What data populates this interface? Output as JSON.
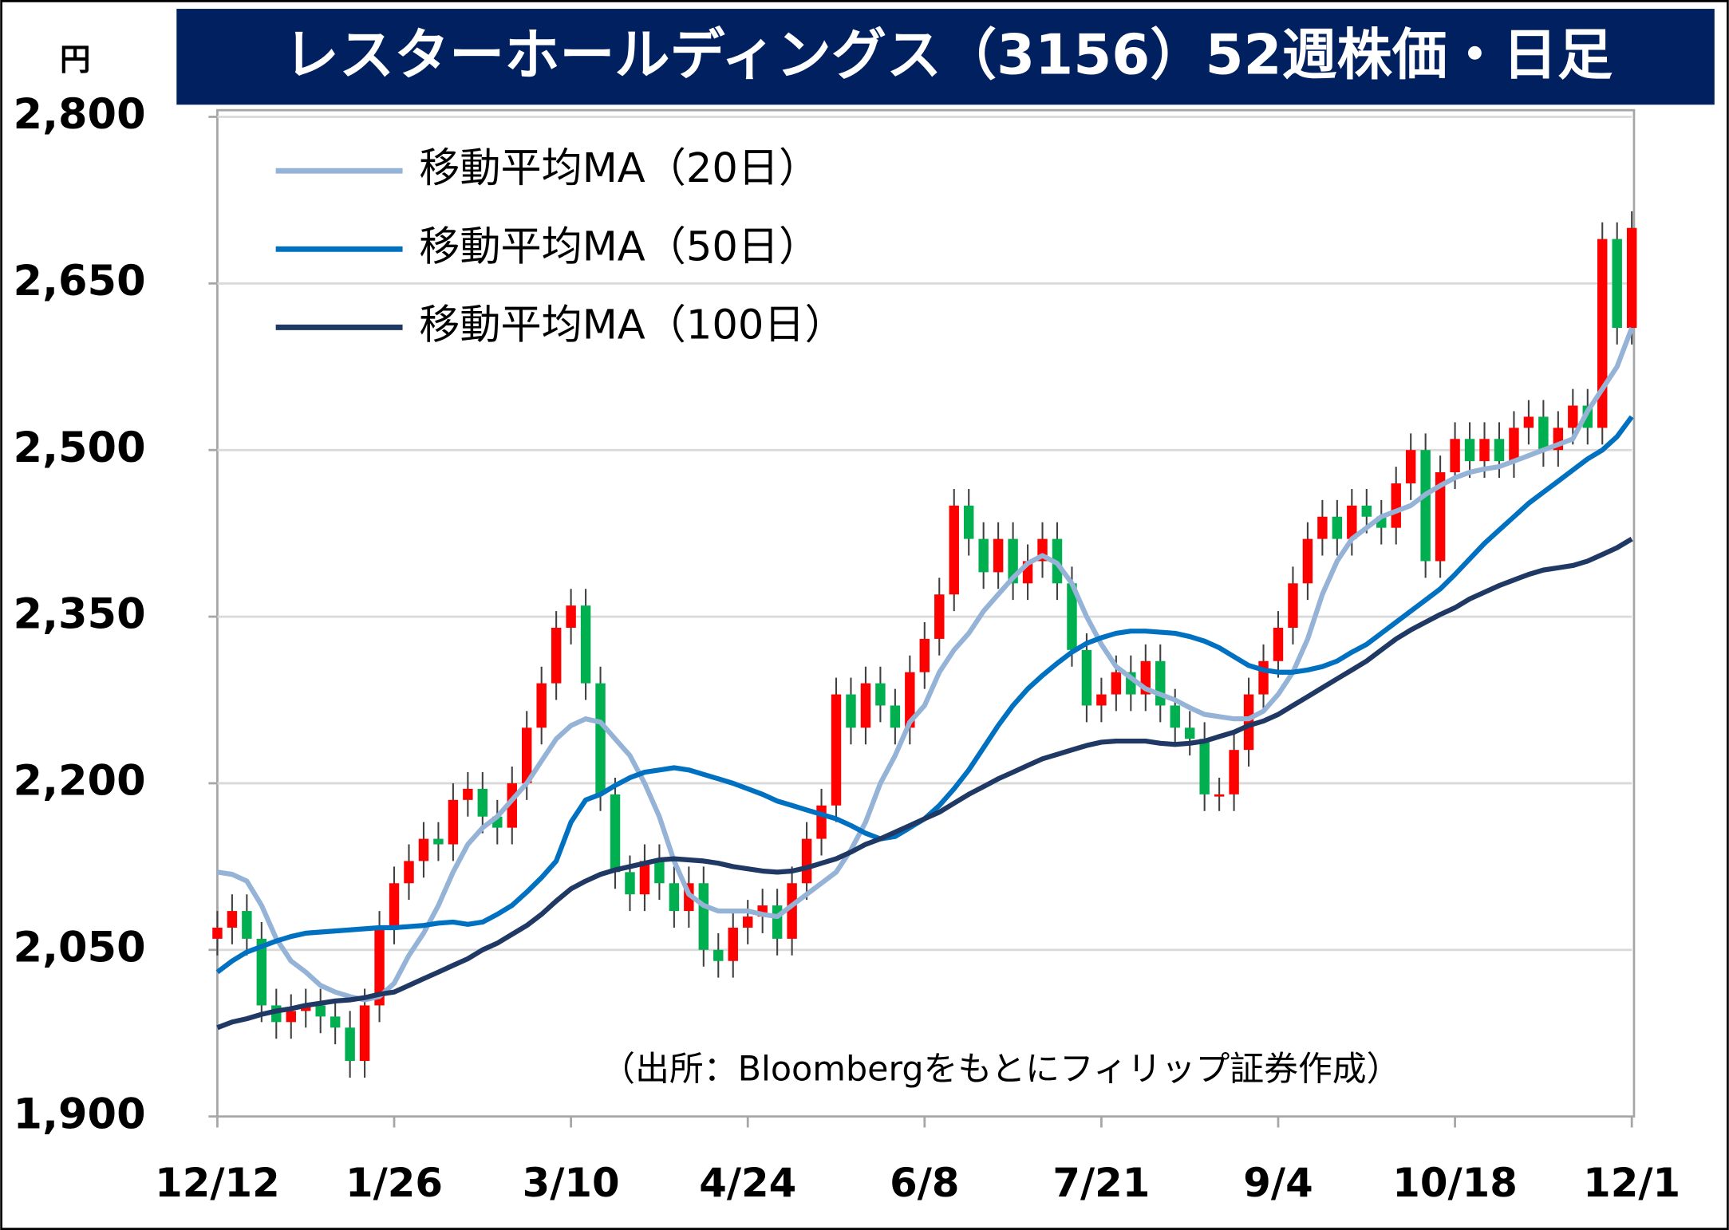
{
  "chart_data": {
    "type": "candlestick",
    "title": "レスターホールディングス（3156）52週株価・日足",
    "unit_label": "円",
    "source": "（出所：Bloombergをもとにフィリップ証券作成）",
    "categories": [
      "12/12",
      null,
      null,
      null,
      null,
      null,
      null,
      null,
      null,
      null,
      null,
      null,
      "1/26",
      null,
      null,
      null,
      null,
      null,
      null,
      null,
      null,
      null,
      null,
      null,
      "3/10",
      null,
      null,
      null,
      null,
      null,
      null,
      null,
      null,
      null,
      null,
      null,
      "4/24",
      null,
      null,
      null,
      null,
      null,
      null,
      null,
      null,
      null,
      null,
      null,
      "6/8",
      null,
      null,
      null,
      null,
      null,
      null,
      null,
      null,
      null,
      null,
      null,
      "7/21",
      null,
      null,
      null,
      null,
      null,
      null,
      null,
      null,
      null,
      null,
      null,
      "9/4",
      null,
      null,
      null,
      null,
      null,
      null,
      null,
      null,
      null,
      null,
      null,
      "10/18",
      null,
      null,
      null,
      null,
      null,
      null,
      null,
      null,
      null,
      null,
      null,
      "12/1"
    ],
    "open": [
      2060,
      2070,
      2085,
      2060,
      2000,
      1985,
      1995,
      2000,
      1990,
      1980,
      1950,
      2000,
      2070,
      2110,
      2130,
      2150,
      2145,
      2185,
      2195,
      2170,
      2160,
      2200,
      2250,
      2290,
      2340,
      2360,
      2290,
      2190,
      2120,
      2100,
      2130,
      2110,
      2085,
      2110,
      2050,
      2040,
      2070,
      2080,
      2090,
      2060,
      2110,
      2150,
      2180,
      2280,
      2250,
      2290,
      2270,
      2250,
      2300,
      2330,
      2370,
      2450,
      2420,
      2390,
      2420,
      2380,
      2400,
      2420,
      2380,
      2320,
      2270,
      2280,
      2300,
      2280,
      2310,
      2270,
      2250,
      2240,
      2190,
      2190,
      2230,
      2280,
      2310,
      2340,
      2380,
      2420,
      2440,
      2420,
      2450,
      2440,
      2430,
      2470,
      2500,
      2400,
      2480,
      2510,
      2490,
      2510,
      2490,
      2520,
      2530,
      2500,
      2520,
      2540,
      2520,
      2690,
      2610
    ],
    "high": [
      2085,
      2100,
      2100,
      2075,
      2015,
      2010,
      2015,
      2015,
      2005,
      1995,
      2015,
      2085,
      2125,
      2145,
      2165,
      2165,
      2200,
      2210,
      2210,
      2185,
      2215,
      2265,
      2305,
      2355,
      2375,
      2375,
      2305,
      2205,
      2135,
      2145,
      2145,
      2125,
      2125,
      2125,
      2065,
      2085,
      2095,
      2105,
      2105,
      2125,
      2165,
      2195,
      2295,
      2295,
      2305,
      2305,
      2285,
      2315,
      2345,
      2385,
      2465,
      2465,
      2435,
      2435,
      2435,
      2415,
      2435,
      2435,
      2395,
      2335,
      2295,
      2315,
      2315,
      2325,
      2325,
      2285,
      2265,
      2255,
      2205,
      2245,
      2295,
      2325,
      2355,
      2395,
      2435,
      2455,
      2455,
      2465,
      2465,
      2455,
      2485,
      2515,
      2515,
      2495,
      2525,
      2525,
      2525,
      2525,
      2535,
      2545,
      2545,
      2535,
      2555,
      2555,
      2705,
      2705,
      2715
    ],
    "low": [
      2045,
      2055,
      2045,
      1985,
      1970,
      1970,
      1980,
      1975,
      1965,
      1935,
      1935,
      1985,
      2055,
      2095,
      2115,
      2130,
      2130,
      2170,
      2155,
      2145,
      2145,
      2185,
      2235,
      2275,
      2325,
      2275,
      2175,
      2105,
      2085,
      2085,
      2095,
      2070,
      2070,
      2035,
      2025,
      2025,
      2055,
      2065,
      2045,
      2045,
      2095,
      2135,
      2165,
      2235,
      2235,
      2255,
      2235,
      2235,
      2285,
      2315,
      2355,
      2405,
      2375,
      2375,
      2365,
      2365,
      2385,
      2365,
      2305,
      2255,
      2255,
      2265,
      2265,
      2265,
      2255,
      2235,
      2225,
      2175,
      2175,
      2175,
      2215,
      2265,
      2295,
      2325,
      2365,
      2405,
      2405,
      2405,
      2425,
      2415,
      2415,
      2455,
      2385,
      2385,
      2465,
      2475,
      2475,
      2475,
      2475,
      2505,
      2485,
      2485,
      2505,
      2505,
      2505,
      2595,
      2595
    ],
    "close": [
      2070,
      2085,
      2060,
      2000,
      1985,
      1995,
      2000,
      1990,
      1980,
      1950,
      2000,
      2070,
      2110,
      2130,
      2150,
      2145,
      2185,
      2195,
      2170,
      2160,
      2200,
      2250,
      2290,
      2340,
      2360,
      2290,
      2190,
      2120,
      2100,
      2130,
      2110,
      2085,
      2110,
      2050,
      2040,
      2070,
      2080,
      2090,
      2060,
      2110,
      2150,
      2180,
      2280,
      2250,
      2290,
      2270,
      2250,
      2300,
      2330,
      2370,
      2450,
      2420,
      2390,
      2420,
      2380,
      2400,
      2420,
      2380,
      2320,
      2270,
      2280,
      2300,
      2280,
      2310,
      2270,
      2250,
      2240,
      2190,
      2190,
      2230,
      2280,
      2310,
      2340,
      2380,
      2420,
      2440,
      2420,
      2450,
      2440,
      2430,
      2470,
      2500,
      2400,
      2480,
      2510,
      2490,
      2510,
      2490,
      2520,
      2530,
      2500,
      2520,
      2540,
      2520,
      2690,
      2610,
      2700
    ],
    "up_color": "#ff0000",
    "down_color": "#00b050",
    "series": [
      {
        "name": "移動平均MA（20日）",
        "color": "#95b3d7",
        "values": [
          2120,
          2118,
          2112,
          2090,
          2060,
          2040,
          2030,
          2018,
          2012,
          2008,
          2005,
          2008,
          2020,
          2045,
          2065,
          2090,
          2120,
          2145,
          2160,
          2170,
          2185,
          2200,
          2220,
          2240,
          2252,
          2258,
          2255,
          2240,
          2225,
          2200,
          2170,
          2130,
          2100,
          2090,
          2085,
          2085,
          2085,
          2082,
          2080,
          2090,
          2100,
          2110,
          2120,
          2140,
          2165,
          2200,
          2225,
          2255,
          2270,
          2300,
          2320,
          2335,
          2355,
          2370,
          2385,
          2398,
          2405,
          2398,
          2380,
          2350,
          2325,
          2305,
          2295,
          2285,
          2280,
          2275,
          2268,
          2262,
          2260,
          2258,
          2258,
          2265,
          2280,
          2300,
          2330,
          2370,
          2400,
          2420,
          2430,
          2440,
          2445,
          2450,
          2460,
          2468,
          2475,
          2480,
          2483,
          2485,
          2490,
          2495,
          2500,
          2505,
          2510,
          2535,
          2555,
          2575,
          2610
        ]
      },
      {
        "name": "移動平均MA（50日）",
        "color": "#0070c0",
        "values": [
          2030,
          2040,
          2048,
          2053,
          2058,
          2062,
          2065,
          2066,
          2067,
          2068,
          2069,
          2070,
          2070,
          2071,
          2072,
          2074,
          2075,
          2073,
          2075,
          2082,
          2090,
          2102,
          2115,
          2130,
          2165,
          2185,
          2190,
          2198,
          2205,
          2210,
          2212,
          2214,
          2212,
          2208,
          2204,
          2200,
          2195,
          2190,
          2184,
          2180,
          2176,
          2172,
          2168,
          2162,
          2155,
          2150,
          2152,
          2160,
          2168,
          2180,
          2195,
          2212,
          2232,
          2252,
          2270,
          2285,
          2297,
          2308,
          2318,
          2326,
          2331,
          2335,
          2337,
          2337,
          2336,
          2335,
          2332,
          2328,
          2322,
          2314,
          2306,
          2302,
          2300,
          2300,
          2302,
          2305,
          2310,
          2318,
          2325,
          2335,
          2345,
          2355,
          2365,
          2375,
          2388,
          2402,
          2416,
          2428,
          2440,
          2452,
          2462,
          2472,
          2482,
          2492,
          2500,
          2512,
          2530
        ]
      },
      {
        "name": "移動平均MA（100日）",
        "color": "#1f3864",
        "values": [
          1980,
          1985,
          1988,
          1992,
          1995,
          1997,
          2000,
          2002,
          2004,
          2005,
          2007,
          2010,
          2012,
          2018,
          2024,
          2030,
          2036,
          2042,
          2050,
          2056,
          2064,
          2072,
          2082,
          2094,
          2105,
          2112,
          2118,
          2122,
          2125,
          2128,
          2131,
          2132,
          2131,
          2130,
          2128,
          2125,
          2123,
          2121,
          2120,
          2121,
          2124,
          2128,
          2132,
          2138,
          2145,
          2150,
          2156,
          2162,
          2168,
          2174,
          2182,
          2190,
          2197,
          2204,
          2210,
          2216,
          2222,
          2226,
          2230,
          2234,
          2237,
          2238,
          2238,
          2238,
          2236,
          2235,
          2236,
          2238,
          2242,
          2246,
          2252,
          2256,
          2262,
          2270,
          2278,
          2286,
          2294,
          2302,
          2310,
          2320,
          2330,
          2338,
          2345,
          2352,
          2358,
          2366,
          2372,
          2378,
          2383,
          2388,
          2392,
          2394,
          2396,
          2400,
          2406,
          2412,
          2420
        ]
      }
    ],
    "ylim": [
      1900,
      2800
    ],
    "yticks": [
      {
        "value": 1900,
        "label": "1,900"
      },
      {
        "value": 2050,
        "label": "2,050"
      },
      {
        "value": 2200,
        "label": "2,200"
      },
      {
        "value": 2350,
        "label": "2,350"
      },
      {
        "value": 2500,
        "label": "2,500"
      },
      {
        "value": 2650,
        "label": "2,650"
      },
      {
        "value": 2800,
        "label": "2,800"
      }
    ],
    "grid": true
  }
}
